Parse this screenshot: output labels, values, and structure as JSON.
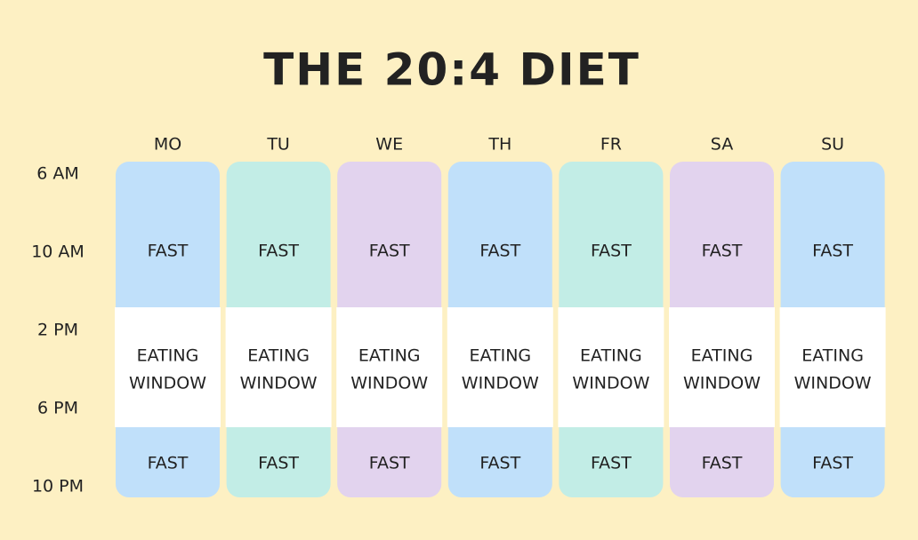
{
  "title": "THE 20:4 DIET",
  "times": [
    "6 AM",
    "10 AM",
    "2 PM",
    "6 PM",
    "10 PM"
  ],
  "days": [
    {
      "label": "MO",
      "color": "#c0e0fa",
      "top": "FAST",
      "window": [
        "EATING",
        "WINDOW"
      ],
      "bottom": "FAST"
    },
    {
      "label": "TU",
      "color": "#c2ede6",
      "top": "FAST",
      "window": [
        "EATING",
        "WINDOW"
      ],
      "bottom": "FAST"
    },
    {
      "label": "WE",
      "color": "#e2d3ee",
      "top": "FAST",
      "window": [
        "EATING",
        "WINDOW"
      ],
      "bottom": "FAST"
    },
    {
      "label": "TH",
      "color": "#c0e0fa",
      "top": "FAST",
      "window": [
        "EATING",
        "WINDOW"
      ],
      "bottom": "FAST"
    },
    {
      "label": "FR",
      "color": "#c2ede6",
      "top": "FAST",
      "window": [
        "EATING",
        "WINDOW"
      ],
      "bottom": "FAST"
    },
    {
      "label": "SA",
      "color": "#e2d3ee",
      "top": "FAST",
      "window": [
        "EATING",
        "WINDOW"
      ],
      "bottom": "FAST"
    },
    {
      "label": "SU",
      "color": "#c0e0fa",
      "top": "FAST",
      "window": [
        "EATING",
        "WINDOW"
      ],
      "bottom": "FAST"
    }
  ]
}
